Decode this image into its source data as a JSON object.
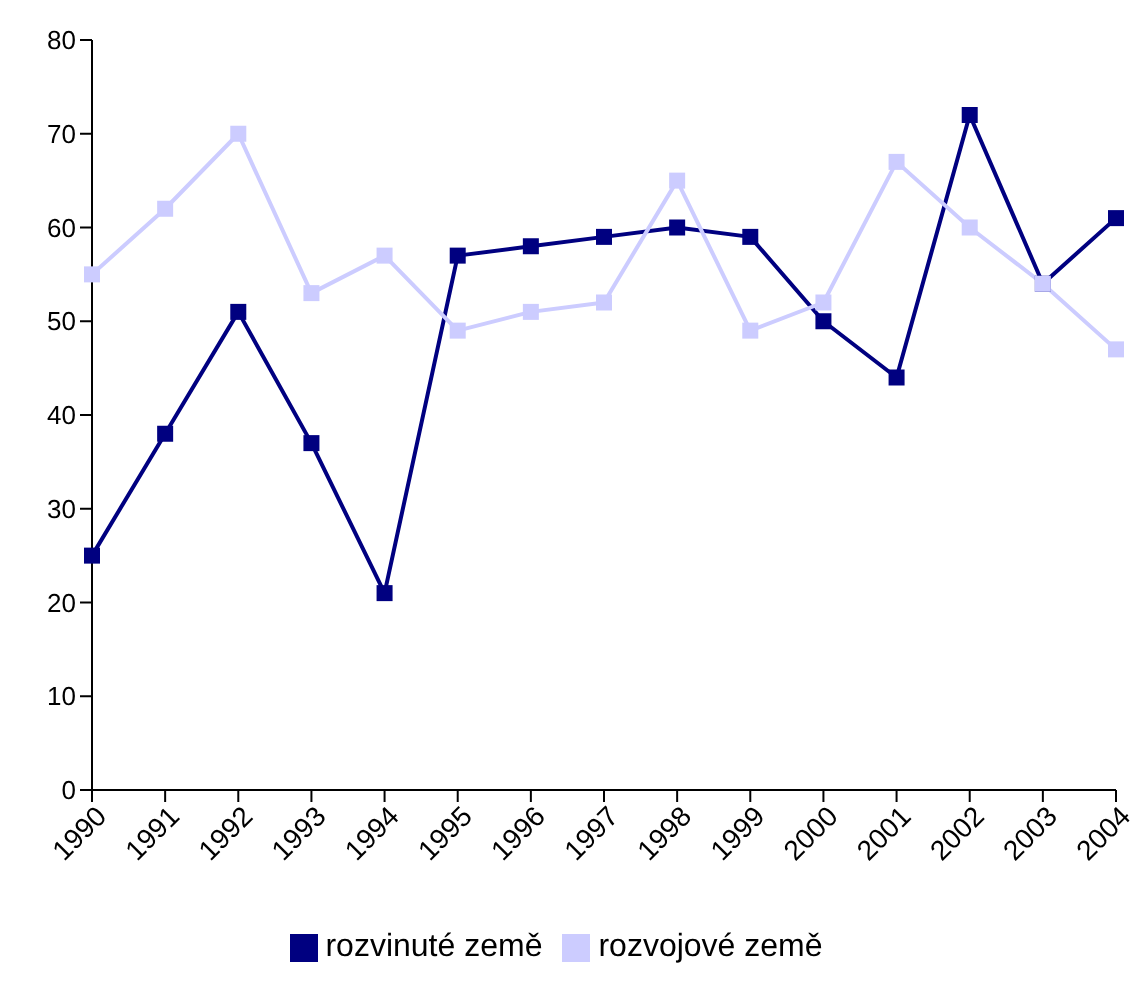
{
  "chart_data": {
    "type": "line",
    "categories": [
      "1990",
      "1991",
      "1992",
      "1993",
      "1994",
      "1995",
      "1996",
      "1997",
      "1998",
      "1999",
      "2000",
      "2001",
      "2002",
      "2003",
      "2004"
    ],
    "series": [
      {
        "name": "rozvinuté země",
        "color": "#000080",
        "values": [
          25,
          38,
          51,
          37,
          21,
          57,
          58,
          59,
          60,
          59,
          50,
          44,
          72,
          54,
          61
        ]
      },
      {
        "name": "rozvojové země",
        "color": "#ccccff",
        "values": [
          55,
          62,
          70,
          53,
          57,
          49,
          51,
          52,
          65,
          49,
          52,
          67,
          60,
          54,
          47
        ]
      }
    ],
    "ylim": [
      0,
      80
    ],
    "yticks": [
      0,
      10,
      20,
      30,
      40,
      50,
      60,
      70,
      80
    ],
    "grid": false,
    "legend": "bottom",
    "marker": "square",
    "line_style": "solid"
  }
}
